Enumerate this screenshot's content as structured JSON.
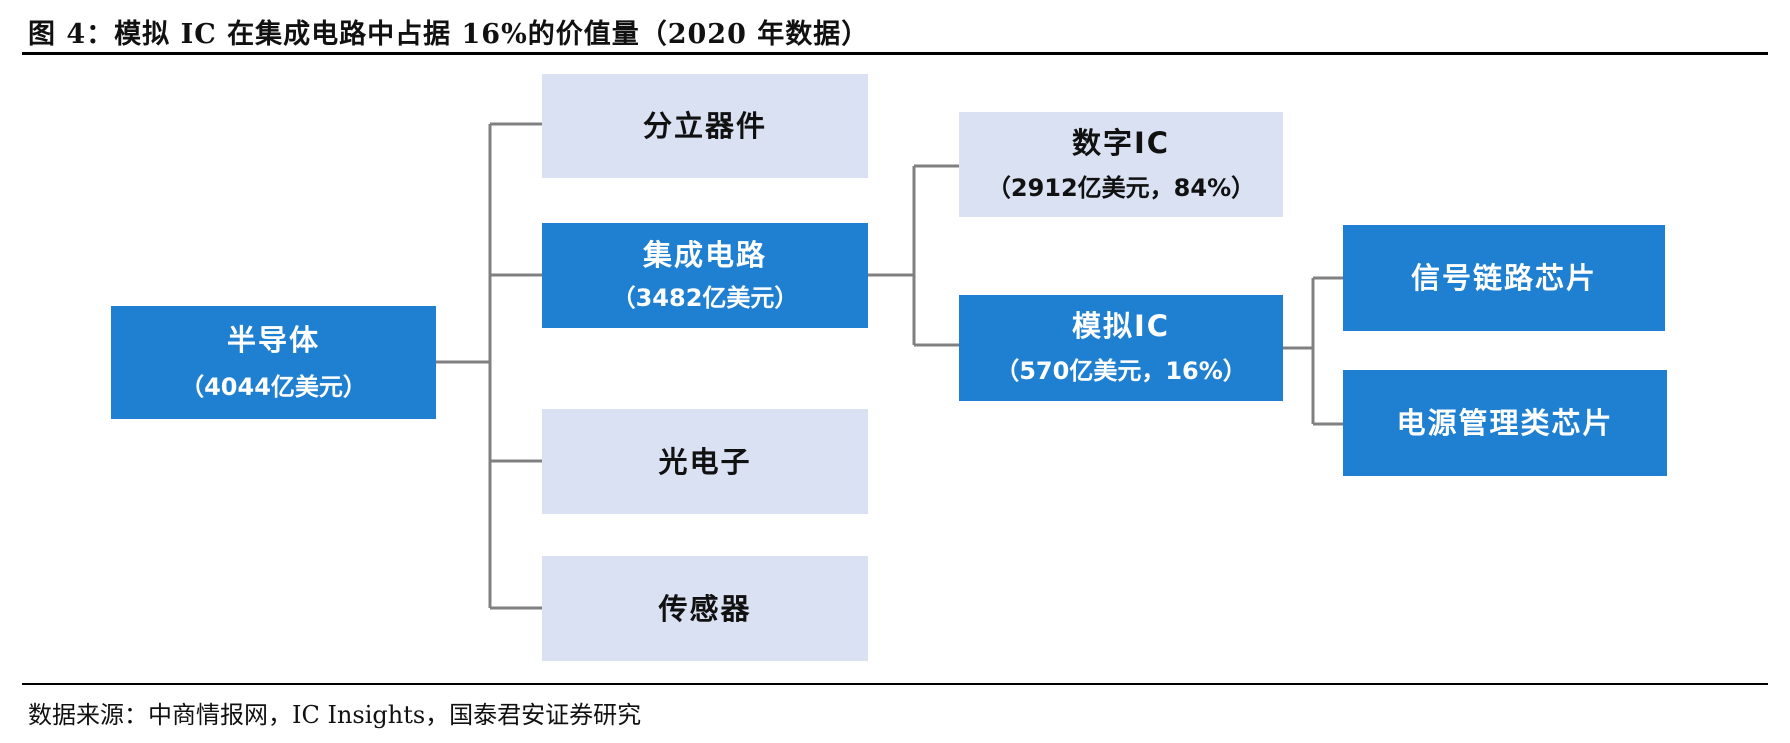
{
  "title": "图 4：模拟 IC 在集成电路中占据 16%的价值量（2020 年数据）",
  "source": "数据来源：中商情报网，IC Insights，国泰君安证券研究",
  "colors": {
    "dark_box": "#1f7fd1",
    "light_box": "#d9e1f3",
    "connector": "#808080"
  },
  "nodes": {
    "semiconductor": {
      "label": "半导体",
      "value": "（4044亿美元）"
    },
    "discrete": {
      "label": "分立器件"
    },
    "ic": {
      "label": "集成电路",
      "value": "（3482亿美元）"
    },
    "optoelectronics": {
      "label": "光电子"
    },
    "sensor": {
      "label": "传感器"
    },
    "digital_ic": {
      "label": "数字IC",
      "value": "（2912亿美元，84%）"
    },
    "analog_ic": {
      "label": "模拟IC",
      "value": "（570亿美元，16%）"
    },
    "signal_chain": {
      "label": "信号链路芯片"
    },
    "power_mgmt": {
      "label": "电源管理类芯片"
    }
  }
}
